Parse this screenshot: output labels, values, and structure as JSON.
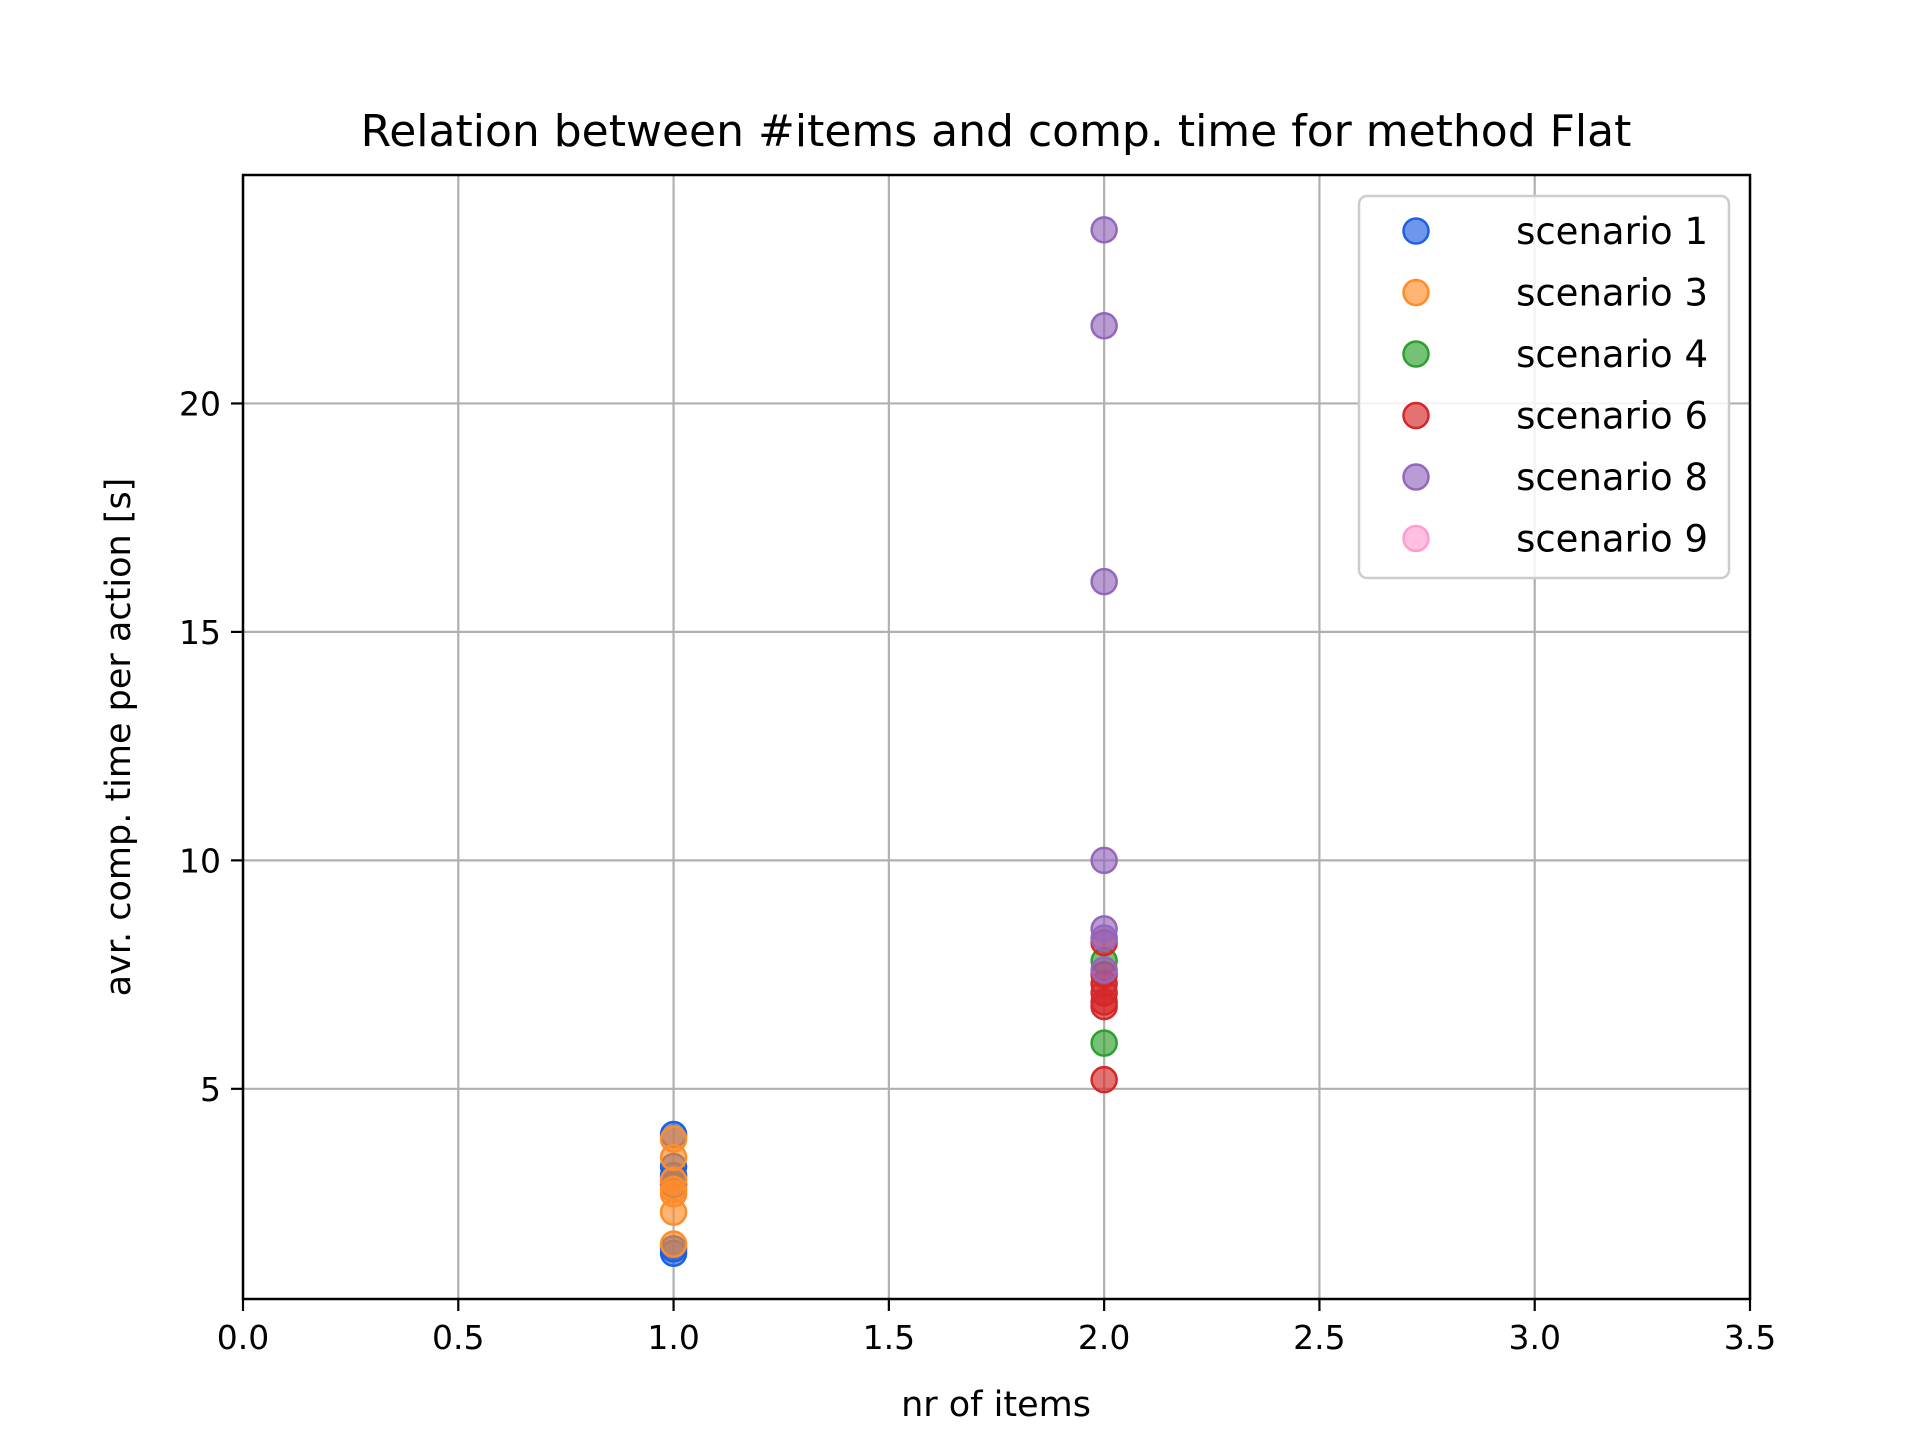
{
  "chart_data": {
    "type": "scatter",
    "title": "Relation between #items and comp. time for method Flat",
    "xlabel": "nr of items",
    "ylabel": "avr. comp. time per action [s]",
    "xlim": [
      0.0,
      3.5
    ],
    "ylim": [
      0.4,
      25.0
    ],
    "xticks": [
      "0.0",
      "0.5",
      "1.0",
      "1.5",
      "2.0",
      "2.5",
      "3.0",
      "3.5"
    ],
    "yticks": [
      "5",
      "10",
      "15",
      "20"
    ],
    "xtick_values": [
      0.0,
      0.5,
      1.0,
      1.5,
      2.0,
      2.5,
      3.0,
      3.5
    ],
    "ytick_values": [
      5,
      10,
      15,
      20
    ],
    "grid": true,
    "legend_position": "top-right",
    "series": [
      {
        "name": "scenario 1",
        "color": "#1f5fe0",
        "x": [
          1,
          1,
          1,
          1,
          1,
          1
        ],
        "y": [
          4.0,
          3.3,
          3.1,
          2.9,
          1.5,
          1.4
        ]
      },
      {
        "name": "scenario 3",
        "color": "#ff8c28",
        "x": [
          1,
          1,
          1,
          1,
          1,
          1,
          1
        ],
        "y": [
          3.9,
          3.5,
          3.0,
          2.8,
          2.7,
          2.3,
          1.6
        ]
      },
      {
        "name": "scenario 4",
        "color": "#2ca02c",
        "x": [
          2,
          2
        ],
        "y": [
          7.8,
          6.0
        ]
      },
      {
        "name": "scenario 6",
        "color": "#d62728",
        "x": [
          2,
          2,
          2,
          2,
          2,
          2,
          2
        ],
        "y": [
          8.2,
          7.5,
          7.3,
          7.1,
          6.9,
          6.8,
          5.2
        ]
      },
      {
        "name": "scenario 8",
        "color": "#9467bd",
        "x": [
          2,
          2,
          2,
          2,
          2,
          2,
          2
        ],
        "y": [
          23.8,
          21.7,
          16.1,
          10.0,
          8.5,
          8.3,
          7.6
        ]
      },
      {
        "name": "scenario 9",
        "color": "#ff9ccf",
        "x": [],
        "y": []
      }
    ]
  }
}
